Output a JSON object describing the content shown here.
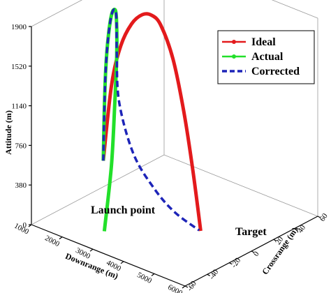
{
  "chart_data": {
    "type": "line",
    "axes": {
      "z": {
        "label": "Attitude (m)",
        "range": [
          0,
          1900
        ],
        "ticks": [
          "0",
          "380",
          "760",
          "1140",
          "1520",
          "1900"
        ]
      },
      "x": {
        "label": "Downrange (m)",
        "range": [
          1000,
          6000
        ],
        "ticks": [
          "1000",
          "2000",
          "3000",
          "4000",
          "5000",
          "6000"
        ]
      },
      "y": {
        "label": "Crossrange (m)",
        "range": [
          -60,
          60
        ],
        "ticks": [
          "-60",
          "-40",
          "-20",
          "0",
          "20",
          "40",
          "60"
        ]
      }
    },
    "legend": {
      "placement": "top-right"
    },
    "series": [
      {
        "name": "Ideal",
        "color": "#e31a1c",
        "style": "solid",
        "marker": "circle",
        "points": [
          {
            "x": 1180,
            "y": 0,
            "z": 300
          },
          {
            "x": 1450,
            "y": 0,
            "z": 1060
          },
          {
            "x": 1750,
            "y": 0,
            "z": 1470
          },
          {
            "x": 2100,
            "y": 0,
            "z": 1720
          },
          {
            "x": 2450,
            "y": 0,
            "z": 1850
          },
          {
            "x": 2750,
            "y": 0,
            "z": 1880
          },
          {
            "x": 3050,
            "y": 0,
            "z": 1820
          },
          {
            "x": 3450,
            "y": 0,
            "z": 1540
          },
          {
            "x": 3800,
            "y": 0,
            "z": 1080
          },
          {
            "x": 4100,
            "y": 0,
            "z": 540
          },
          {
            "x": 4350,
            "y": 0,
            "z": 0
          }
        ]
      },
      {
        "name": "Actual",
        "color": "#22e02a",
        "style": "solid",
        "marker": "circle",
        "points": [
          {
            "x": 1180,
            "y": 0,
            "z": 300
          },
          {
            "x": 1250,
            "y": -1,
            "z": 800
          },
          {
            "x": 1330,
            "y": -2,
            "z": 1200
          },
          {
            "x": 1450,
            "y": -3,
            "z": 1540
          },
          {
            "x": 1600,
            "y": -4,
            "z": 1780
          },
          {
            "x": 1750,
            "y": -5,
            "z": 1840
          },
          {
            "x": 1900,
            "y": -8,
            "z": 1760
          },
          {
            "x": 2050,
            "y": -12,
            "z": 1500
          },
          {
            "x": 2200,
            "y": -18,
            "z": 1060
          },
          {
            "x": 2380,
            "y": -26,
            "z": 540
          },
          {
            "x": 2580,
            "y": -38,
            "z": 0
          }
        ]
      },
      {
        "name": "Corrected",
        "color": "#1d24b8",
        "style": "dashed",
        "marker": "none",
        "points": [
          {
            "x": 1180,
            "y": 0,
            "z": 300
          },
          {
            "x": 1250,
            "y": -1,
            "z": 800
          },
          {
            "x": 1330,
            "y": -2,
            "z": 1200
          },
          {
            "x": 1450,
            "y": -3,
            "z": 1540
          },
          {
            "x": 1600,
            "y": -4,
            "z": 1780
          },
          {
            "x": 1750,
            "y": -5,
            "z": 1840
          },
          {
            "x": 1900,
            "y": -8,
            "z": 1760
          },
          {
            "x": 2050,
            "y": -12,
            "z": 1500
          },
          {
            "x": 2200,
            "y": -14,
            "z": 1060
          },
          {
            "x": 2450,
            "y": -8,
            "z": 560
          },
          {
            "x": 2900,
            "y": -2,
            "z": 250
          },
          {
            "x": 3500,
            "y": 0,
            "z": 80
          },
          {
            "x": 4300,
            "y": 0,
            "z": 0
          }
        ]
      }
    ],
    "annotations": [
      {
        "text": "Launch point"
      },
      {
        "text": "Target"
      }
    ]
  }
}
